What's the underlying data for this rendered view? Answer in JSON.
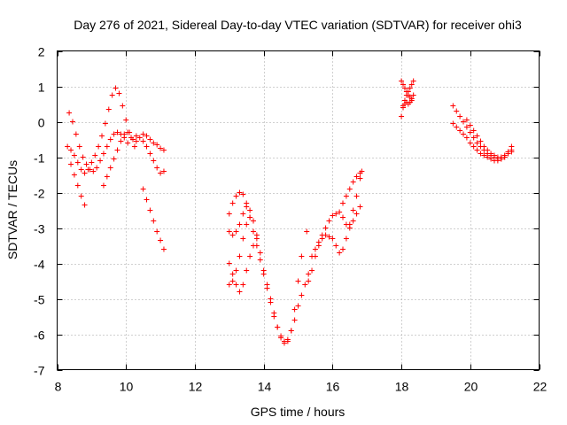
{
  "chart_data": {
    "type": "scatter",
    "title": "Day 276 of 2021, Sidereal Day-to-day VTEC variation (SDTVAR) for receiver ohi3",
    "xlabel": "GPS time / hours",
    "ylabel": "SDTVAR / TECUs",
    "xlim": [
      8,
      22
    ],
    "ylim": [
      -7,
      2
    ],
    "xticks": [
      8,
      10,
      12,
      14,
      16,
      18,
      20,
      22
    ],
    "yticks": [
      -7,
      -6,
      -5,
      -4,
      -3,
      -2,
      -1,
      0,
      1,
      2
    ],
    "grid": true,
    "marker": "+",
    "color": "#ff0000",
    "series": [
      {
        "name": "s1",
        "x": [
          8.35,
          8.45,
          8.55,
          8.65,
          8.75,
          8.85,
          8.95,
          9.05,
          9.15,
          9.25,
          9.35,
          9.45,
          9.55,
          9.65,
          9.75,
          9.85,
          9.95,
          10.05
        ],
        "y": [
          0.25,
          0.0,
          -0.35,
          -0.7,
          -1.0,
          -1.2,
          -1.35,
          -1.4,
          -1.3,
          -1.1,
          -0.9,
          -0.7,
          -0.5,
          -0.35,
          -0.3,
          -0.35,
          -0.45,
          -0.6
        ]
      },
      {
        "name": "s2",
        "x": [
          8.3,
          8.4,
          8.5,
          8.6,
          8.7,
          8.8,
          8.9,
          9.0,
          9.1,
          9.2,
          9.3,
          9.4,
          9.5,
          9.6,
          9.7,
          9.8,
          9.9,
          10.0,
          10.1,
          10.2,
          10.3
        ],
        "y": [
          -0.7,
          -0.8,
          -0.95,
          -1.15,
          -1.35,
          -1.45,
          -1.35,
          -1.15,
          -0.95,
          -0.7,
          -0.4,
          -0.05,
          0.35,
          0.75,
          0.95,
          0.8,
          0.45,
          0.05,
          -0.3,
          -0.5,
          -0.55
        ]
      },
      {
        "name": "s3",
        "x": [
          8.4,
          8.5,
          8.6,
          8.7,
          8.8
        ],
        "y": [
          -1.2,
          -1.5,
          -1.8,
          -2.1,
          -2.35
        ]
      },
      {
        "name": "s4",
        "x": [
          9.35,
          9.45,
          9.55,
          9.65,
          9.75,
          9.85,
          9.95,
          10.05,
          10.15,
          10.25
        ],
        "y": [
          -1.8,
          -1.55,
          -1.3,
          -1.05,
          -0.8,
          -0.55,
          -0.35,
          -0.3,
          -0.45,
          -0.7
        ]
      },
      {
        "name": "s5",
        "x": [
          10.3,
          10.4,
          10.5,
          10.6,
          10.7,
          10.8,
          10.9,
          11.0,
          11.1
        ],
        "y": [
          -0.4,
          -0.45,
          -0.55,
          -0.7,
          -0.9,
          -1.1,
          -1.3,
          -1.45,
          -1.4
        ]
      },
      {
        "name": "s6",
        "x": [
          10.5,
          10.6,
          10.7,
          10.8,
          10.9,
          11.0,
          11.1
        ],
        "y": [
          -0.35,
          -0.4,
          -0.5,
          -0.6,
          -0.65,
          -0.75,
          -0.8
        ]
      },
      {
        "name": "s7",
        "x": [
          10.5,
          10.6,
          10.7,
          10.8,
          10.9,
          11.0,
          11.1
        ],
        "y": [
          -1.9,
          -2.2,
          -2.5,
          -2.8,
          -3.1,
          -3.35,
          -3.6
        ]
      },
      {
        "name": "s8",
        "x": [
          13.0,
          13.1,
          13.2,
          13.3,
          13.4,
          13.5,
          13.6,
          13.7,
          13.8,
          13.9,
          14.0,
          14.1,
          14.2,
          14.3,
          14.4,
          14.5,
          14.6,
          14.7,
          14.8,
          14.9,
          15.0,
          15.1
        ],
        "y": [
          -2.6,
          -2.3,
          -2.1,
          -2.0,
          -2.05,
          -2.3,
          -2.7,
          -3.1,
          -3.5,
          -3.9,
          -4.3,
          -4.7,
          -5.1,
          -5.5,
          -5.8,
          -6.05,
          -6.2,
          -6.2,
          -5.9,
          -5.3,
          -4.5,
          -3.8
        ]
      },
      {
        "name": "s9",
        "x": [
          13.0,
          13.1,
          13.2,
          13.3,
          13.4,
          13.5,
          13.6,
          13.7,
          13.8,
          13.9,
          14.0,
          14.1,
          14.2,
          14.3,
          14.4,
          14.5,
          14.6,
          14.7,
          14.8,
          14.9,
          15.0,
          15.1,
          15.2,
          15.3
        ],
        "y": [
          -4.6,
          -4.5,
          -4.2,
          -3.8,
          -3.3,
          -2.9,
          -2.7,
          -2.8,
          -3.2,
          -3.7,
          -4.2,
          -4.6,
          -5.0,
          -5.4,
          -5.8,
          -6.1,
          -6.25,
          -6.15,
          -5.9,
          -5.6,
          -5.2,
          -4.9,
          -4.6,
          -4.3
        ]
      },
      {
        "name": "s10",
        "x": [
          13.0,
          13.1,
          13.2,
          13.3,
          13.4,
          13.5,
          13.6,
          13.7
        ],
        "y": [
          -3.1,
          -3.2,
          -3.1,
          -2.9,
          -2.6,
          -2.4,
          -2.5,
          -2.8
        ]
      },
      {
        "name": "s11",
        "x": [
          13.0,
          13.1,
          13.2,
          13.3,
          13.4,
          13.5,
          13.6,
          13.7,
          13.8
        ],
        "y": [
          -4.0,
          -4.3,
          -4.6,
          -4.8,
          -4.6,
          -4.2,
          -3.8,
          -3.5,
          -3.3
        ]
      },
      {
        "name": "s12",
        "x": [
          15.3,
          15.4,
          15.5,
          15.6,
          15.7,
          15.8,
          15.9,
          16.0,
          16.1,
          16.2,
          16.3,
          16.4,
          16.5,
          16.6,
          16.7,
          16.8
        ],
        "y": [
          -4.5,
          -4.2,
          -3.8,
          -3.5,
          -3.3,
          -3.2,
          -3.25,
          -3.3,
          -3.5,
          -3.7,
          -3.6,
          -3.3,
          -2.9,
          -2.5,
          -2.1,
          -1.6
        ]
      },
      {
        "name": "s13",
        "x": [
          15.4,
          15.5,
          15.6,
          15.7,
          15.8,
          15.9,
          16.0,
          16.1,
          16.2,
          16.3,
          16.4,
          16.5,
          16.6,
          16.7,
          16.8
        ],
        "y": [
          -3.8,
          -3.6,
          -3.4,
          -3.2,
          -3.0,
          -2.8,
          -2.65,
          -2.6,
          -2.55,
          -2.7,
          -2.9,
          -3.0,
          -2.8,
          -2.6,
          -2.4
        ]
      },
      {
        "name": "s14",
        "x": [
          16.3,
          16.4,
          16.5,
          16.6,
          16.7,
          16.8,
          16.85
        ],
        "y": [
          -2.3,
          -2.1,
          -1.9,
          -1.7,
          -1.55,
          -1.45,
          -1.4
        ]
      },
      {
        "name": "s15",
        "x": [
          15.25
        ],
        "y": [
          -3.1
        ]
      },
      {
        "name": "s16",
        "x": [
          18.0,
          18.05,
          18.1,
          18.15,
          18.2,
          18.25,
          18.3,
          18.35
        ],
        "y": [
          0.15,
          0.4,
          0.6,
          0.75,
          0.85,
          0.95,
          1.05,
          1.15
        ]
      },
      {
        "name": "s17",
        "x": [
          18.0,
          18.05,
          18.1,
          18.15,
          18.2,
          18.25,
          18.3,
          18.35
        ],
        "y": [
          1.15,
          1.05,
          0.95,
          0.85,
          0.75,
          0.7,
          0.65,
          0.75
        ]
      },
      {
        "name": "s18",
        "x": [
          18.05,
          18.1,
          18.15,
          18.2,
          18.25,
          18.3
        ],
        "y": [
          0.45,
          0.5,
          0.55,
          0.5,
          0.55,
          0.6
        ]
      },
      {
        "name": "s19",
        "x": [
          19.5,
          19.6,
          19.7,
          19.8,
          19.9,
          20.0,
          20.1,
          20.2,
          20.3,
          20.4,
          20.5,
          20.6,
          20.7,
          20.8,
          20.9,
          21.0,
          21.1,
          21.2
        ],
        "y": [
          0.45,
          0.3,
          0.15,
          0.0,
          -0.15,
          -0.3,
          -0.45,
          -0.6,
          -0.7,
          -0.8,
          -0.9,
          -0.95,
          -1.0,
          -1.05,
          -1.05,
          -1.0,
          -0.9,
          -0.8
        ]
      },
      {
        "name": "s20",
        "x": [
          19.5,
          19.6,
          19.7,
          19.8,
          19.9,
          20.0,
          20.1,
          20.2,
          20.3,
          20.4,
          20.5,
          20.6,
          20.7,
          20.8,
          20.9,
          21.0,
          21.1,
          21.2
        ],
        "y": [
          -0.05,
          -0.15,
          -0.25,
          -0.35,
          -0.45,
          -0.6,
          -0.7,
          -0.8,
          -0.9,
          -0.95,
          -1.0,
          -1.05,
          -1.1,
          -1.1,
          -1.05,
          -1.0,
          -0.85,
          -0.7
        ]
      },
      {
        "name": "s21",
        "x": [
          19.9,
          20.0,
          20.1,
          20.2,
          20.3,
          20.4,
          20.5,
          20.6,
          20.7,
          20.8,
          20.9,
          21.0,
          21.1,
          21.2
        ],
        "y": [
          0.05,
          -0.1,
          -0.25,
          -0.4,
          -0.55,
          -0.7,
          -0.8,
          -0.9,
          -0.95,
          -1.0,
          -1.0,
          -0.95,
          -0.9,
          -0.85
        ]
      }
    ]
  }
}
